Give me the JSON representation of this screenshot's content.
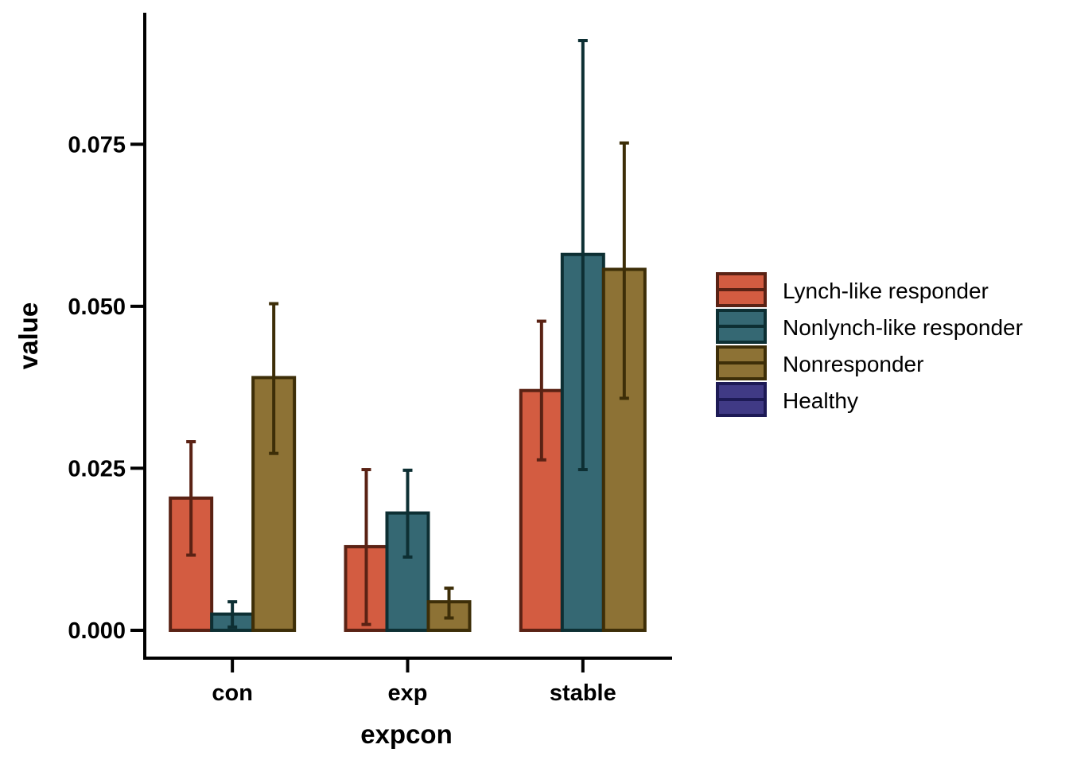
{
  "chart_data": {
    "type": "bar",
    "xlabel": "expcon",
    "ylabel": "value",
    "categories": [
      "con",
      "exp",
      "stable"
    ],
    "ylim": [
      -0.0043,
      0.0953
    ],
    "yticks": [
      0.0,
      0.025,
      0.05,
      0.075
    ],
    "ytick_labels": [
      "0.000",
      "0.025",
      "0.050",
      "0.075"
    ],
    "grid": false,
    "legend_position": "right",
    "series": [
      {
        "name": "Lynch-like responder",
        "fill": "#d35c41",
        "stroke": "#5a2214",
        "values": [
          0.0204,
          0.0129,
          0.037
        ],
        "err_low": [
          0.0116,
          0.0009,
          0.0263
        ],
        "err_high": [
          0.0291,
          0.0248,
          0.0477
        ]
      },
      {
        "name": "Nonlynch-like responder",
        "fill": "#356873",
        "stroke": "#0d2f33",
        "values": [
          0.0025,
          0.0181,
          0.058
        ],
        "err_low": [
          0.0005,
          0.0113,
          0.0248
        ],
        "err_high": [
          0.0044,
          0.0247,
          0.091
        ]
      },
      {
        "name": "Nonresponder",
        "fill": "#8d7235",
        "stroke": "#3d2e08",
        "values": [
          0.039,
          0.0044,
          0.0557
        ],
        "err_low": [
          0.0273,
          0.0019,
          0.0358
        ],
        "err_high": [
          0.0504,
          0.0065,
          0.0752
        ]
      },
      {
        "name": "Healthy",
        "fill": "#403a85",
        "stroke": "#1d1a55",
        "values": [
          null,
          null,
          null
        ]
      }
    ]
  }
}
